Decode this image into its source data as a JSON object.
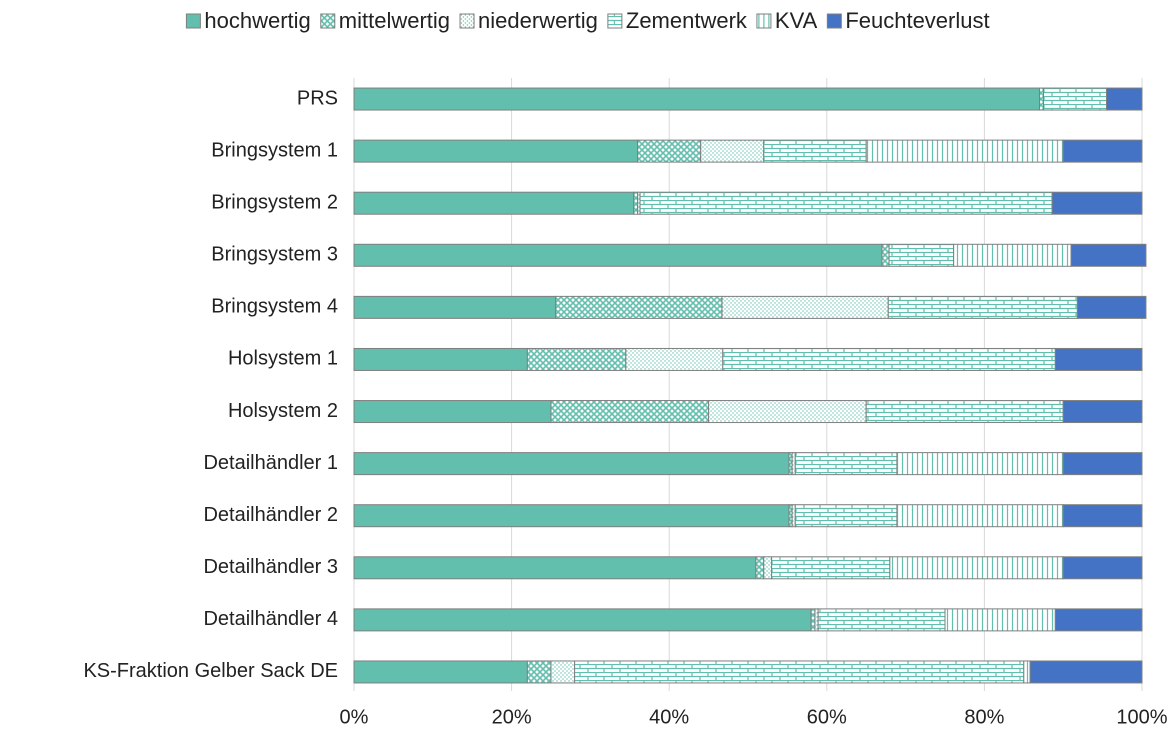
{
  "chart_data": {
    "type": "stacked_barh",
    "categories": [
      "PRS",
      "Bringsystem 1",
      "Bringsystem 2",
      "Bringsystem 3",
      "Bringsystem 4",
      "Holsystem 1",
      "Holsystem 2",
      "Detailhändler 1",
      "Detailhändler 2",
      "Detailhändler 3",
      "Detailhändler 4",
      "KS-Fraktion Gelber Sack DE"
    ],
    "series": [
      {
        "name": "hochwertig",
        "color": "#62bfae",
        "pattern": "solid",
        "values": [
          87,
          36,
          35.5,
          67,
          25.6,
          22,
          25,
          55.2,
          55.2,
          51,
          58,
          22
        ]
      },
      {
        "name": "mittelwertig",
        "color": "#62bfae",
        "pattern": "crosshatch",
        "values": [
          0.5,
          8,
          0.5,
          0.9,
          21.1,
          12.5,
          20,
          0.4,
          0.4,
          1,
          0.5,
          3
        ]
      },
      {
        "name": "niederwertig",
        "color": "#62bfae",
        "pattern": "dots",
        "values": [
          0,
          8,
          0.3,
          0,
          21.1,
          12.3,
          20,
          0.4,
          0.4,
          1,
          0.4,
          3
        ]
      },
      {
        "name": "Zementwerk",
        "color": "#62bfae",
        "pattern": "bricks",
        "values": [
          8,
          13,
          52.3,
          8.2,
          24,
          42.2,
          25,
          12.9,
          12.9,
          15,
          16.1,
          57
        ]
      },
      {
        "name": "KVA",
        "color": "#62bfae",
        "pattern": "vertical",
        "values": [
          0,
          25,
          0,
          14.9,
          0,
          0,
          0,
          21.1,
          21.1,
          22,
          14,
          0.8
        ]
      },
      {
        "name": "Feuchteverlust",
        "color": "#4472c4",
        "pattern": "solid",
        "values": [
          4.5,
          10,
          11.4,
          9.5,
          8.7,
          11,
          10,
          10,
          10,
          10,
          11,
          14.2
        ]
      }
    ],
    "xlim": [
      0,
      100
    ],
    "xticks": [
      {
        "value": 0,
        "label": "0%"
      },
      {
        "value": 20,
        "label": "20%"
      },
      {
        "value": 40,
        "label": "40%"
      },
      {
        "value": 60,
        "label": "60%"
      },
      {
        "value": 80,
        "label": "80%"
      },
      {
        "value": 100,
        "label": "100%"
      }
    ],
    "grid": true,
    "legend": "top"
  }
}
